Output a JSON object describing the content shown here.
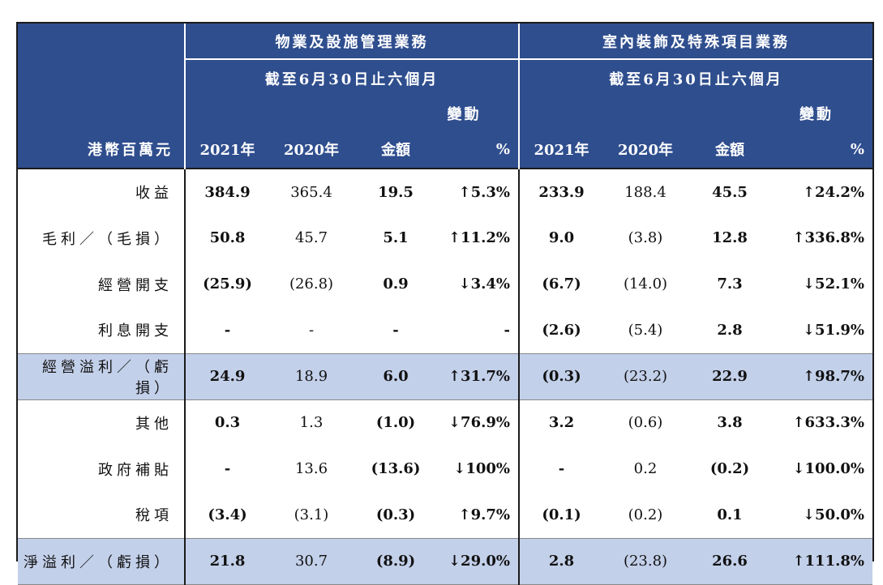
{
  "header": {
    "segment1": "物業及設施管理業務",
    "segment2": "室內裝飾及特殊項目業務",
    "period": "截至6月30日止六個月",
    "change": "變動",
    "unit": "港幣百萬元",
    "cols": [
      "2021年",
      "2020年",
      "金額",
      "%"
    ]
  },
  "rows": [
    {
      "label": "收益",
      "highlight": false,
      "s1": [
        "384.9",
        "365.4",
        "19.5",
        "↑5.3%"
      ],
      "s2": [
        "233.9",
        "188.4",
        "45.5",
        "↑24.2%"
      ]
    },
    {
      "label": "毛利／（毛損）",
      "highlight": false,
      "s1": [
        "50.8",
        "45.7",
        "5.1",
        "↑11.2%"
      ],
      "s2": [
        "9.0",
        "(3.8)",
        "12.8",
        "↑336.8%"
      ]
    },
    {
      "label": "經營開支",
      "highlight": false,
      "s1": [
        "(25.9)",
        "(26.8)",
        "0.9",
        "↓3.4%"
      ],
      "s2": [
        "(6.7)",
        "(14.0)",
        "7.3",
        "↓52.1%"
      ]
    },
    {
      "label": "利息開支",
      "highlight": false,
      "s1": [
        "-",
        "-",
        "-",
        "-"
      ],
      "s2": [
        "(2.6)",
        "(5.4)",
        "2.8",
        "↓51.9%"
      ]
    },
    {
      "label": "經營溢利／（虧損）",
      "highlight": true,
      "s1": [
        "24.9",
        "18.9",
        "6.0",
        "↑31.7%"
      ],
      "s2": [
        "(0.3)",
        "(23.2)",
        "22.9",
        "↑98.7%"
      ]
    },
    {
      "label": "其他",
      "highlight": false,
      "s1": [
        "0.3",
        "1.3",
        "(1.0)",
        "↓76.9%"
      ],
      "s2": [
        "3.2",
        "(0.6)",
        "3.8",
        "↑633.3%"
      ]
    },
    {
      "label": "政府補貼",
      "highlight": false,
      "s1": [
        "-",
        "13.6",
        "(13.6)",
        "↓100%"
      ],
      "s2": [
        "-",
        "0.2",
        "(0.2)",
        "↓100.0%"
      ]
    },
    {
      "label": "稅項",
      "highlight": false,
      "s1": [
        "(3.4)",
        "(3.1)",
        "(0.3)",
        "↑9.7%"
      ],
      "s2": [
        "(0.1)",
        "(0.2)",
        "0.1",
        "↓50.0%"
      ]
    },
    {
      "label": "淨溢利／（虧損）",
      "highlight": true,
      "s1": [
        "21.8",
        "30.7",
        "(8.9)",
        "↓29.0%"
      ],
      "s2": [
        "2.8",
        "(23.8)",
        "26.6",
        "↑111.8%"
      ]
    }
  ]
}
